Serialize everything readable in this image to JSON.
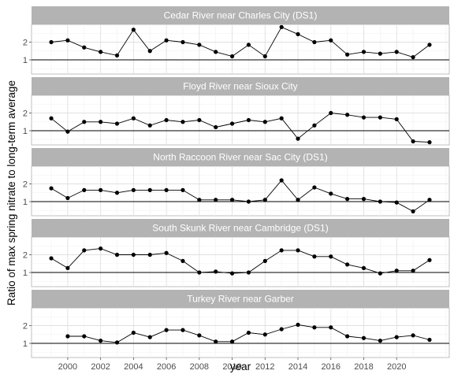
{
  "chart_data": {
    "type": "line",
    "layout": "facets stacked vertically, shared x axis",
    "xlabel": "year",
    "ylabel": "Ratio of max spring nitrate to long-term average",
    "xlim": [
      1997.8,
      2023.2
    ],
    "ylim": [
      0.2,
      3.0
    ],
    "x_ticks": [
      2000,
      2002,
      2004,
      2006,
      2008,
      2010,
      2012,
      2014,
      2016,
      2018,
      2020
    ],
    "y_ticks": [
      1,
      2
    ],
    "reference_line_y": 1,
    "grid": true,
    "colors": {
      "strip": "#b3b3b3",
      "line": "#000000",
      "grid": "#e0e0e0"
    },
    "series": [
      {
        "name": "Cedar River near Charles City (DS1)",
        "x": [
          1999,
          2000,
          2001,
          2002,
          2003,
          2004,
          2005,
          2006,
          2007,
          2008,
          2009,
          2010,
          2011,
          2012,
          2013,
          2014,
          2015,
          2016,
          2017,
          2018,
          2019,
          2020,
          2021,
          2022
        ],
        "values": [
          2.0,
          2.1,
          1.7,
          1.45,
          1.25,
          2.7,
          1.5,
          2.1,
          2.0,
          1.85,
          1.45,
          1.2,
          1.85,
          1.2,
          2.85,
          2.45,
          2.0,
          2.1,
          1.3,
          1.45,
          1.35,
          1.45,
          1.15,
          1.85
        ]
      },
      {
        "name": "Floyd River near Sioux City",
        "x": [
          1999,
          2000,
          2001,
          2002,
          2003,
          2004,
          2005,
          2006,
          2007,
          2008,
          2009,
          2010,
          2011,
          2012,
          2013,
          2014,
          2015,
          2016,
          2017,
          2018,
          2019,
          2020,
          2021,
          2022
        ],
        "values": [
          1.7,
          0.95,
          1.5,
          1.5,
          1.4,
          1.7,
          1.3,
          1.6,
          1.5,
          1.6,
          1.2,
          1.4,
          1.6,
          1.5,
          1.7,
          0.55,
          1.3,
          2.0,
          1.9,
          1.75,
          1.75,
          1.65,
          0.4,
          0.35
        ]
      },
      {
        "name": "North Raccoon River near Sac City (DS1)",
        "x": [
          1999,
          2000,
          2001,
          2002,
          2003,
          2004,
          2005,
          2006,
          2007,
          2008,
          2009,
          2010,
          2011,
          2012,
          2013,
          2014,
          2015,
          2016,
          2017,
          2018,
          2019,
          2020,
          2021,
          2022
        ],
        "values": [
          1.75,
          1.2,
          1.65,
          1.65,
          1.5,
          1.65,
          1.65,
          1.65,
          1.65,
          1.1,
          1.1,
          1.1,
          1.0,
          1.1,
          2.2,
          1.1,
          1.8,
          1.45,
          1.15,
          1.15,
          1.0,
          0.95,
          0.45,
          1.1
        ]
      },
      {
        "name": "South Skunk River near Cambridge (DS1)",
        "x": [
          1999,
          2000,
          2001,
          2002,
          2003,
          2004,
          2005,
          2006,
          2007,
          2008,
          2009,
          2010,
          2011,
          2012,
          2013,
          2014,
          2015,
          2016,
          2017,
          2018,
          2019,
          2020,
          2021,
          2022
        ],
        "values": [
          1.8,
          1.25,
          2.25,
          2.35,
          2.0,
          2.0,
          2.0,
          2.1,
          1.65,
          1.0,
          1.05,
          0.95,
          1.0,
          1.65,
          2.25,
          2.25,
          1.9,
          1.9,
          1.45,
          1.25,
          0.95,
          1.1,
          1.1,
          1.7
        ]
      },
      {
        "name": "Turkey River near Garber",
        "x": [
          2000,
          2001,
          2002,
          2003,
          2004,
          2005,
          2006,
          2007,
          2008,
          2009,
          2010,
          2011,
          2012,
          2013,
          2014,
          2015,
          2016,
          2017,
          2018,
          2019,
          2020,
          2021,
          2022
        ],
        "values": [
          1.4,
          1.4,
          1.15,
          1.05,
          1.6,
          1.35,
          1.75,
          1.75,
          1.45,
          1.1,
          1.1,
          1.6,
          1.5,
          1.8,
          2.05,
          1.9,
          1.9,
          1.4,
          1.3,
          1.15,
          1.35,
          1.45,
          1.2
        ]
      }
    ]
  }
}
